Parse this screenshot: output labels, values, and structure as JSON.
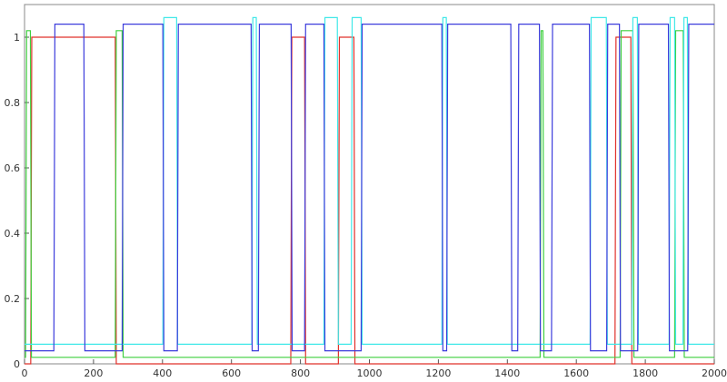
{
  "chart_data": {
    "type": "line",
    "xlim": [
      0,
      2000
    ],
    "xticks": [
      0,
      200,
      400,
      600,
      800,
      1000,
      1200,
      1400,
      1600,
      1800,
      2000
    ],
    "ylim": [
      0,
      1.1
    ],
    "yticks": [
      0,
      0.2,
      0.4,
      0.6,
      0.8,
      1
    ],
    "series": [
      {
        "color": "#e0302a",
        "x": [
          0,
          18,
          21,
          263,
          266,
          772,
          775,
          812,
          815,
          910,
          913,
          955,
          958,
          1712,
          1715,
          1758,
          1761,
          2000
        ],
        "values": [
          0,
          0,
          1,
          1,
          0,
          0,
          1,
          1,
          0,
          0,
          1,
          1,
          0,
          0,
          1,
          1,
          0,
          0
        ]
      },
      {
        "color": "#3fcf3f",
        "x": [
          0,
          3,
          6,
          17,
          20,
          263,
          266,
          283,
          286,
          1495,
          1498,
          1503,
          1506,
          1727,
          1730,
          1764,
          1767,
          1885,
          1888,
          1910,
          1913,
          2000
        ],
        "values": [
          0.02,
          0.02,
          1.02,
          1.02,
          0.02,
          0.02,
          1.02,
          1.02,
          0.02,
          0.02,
          1.02,
          1.02,
          0.02,
          0.02,
          1.02,
          1.02,
          0.02,
          0.02,
          1.02,
          1.02,
          0.02,
          0.02
        ]
      },
      {
        "color": "#40e8e8",
        "x": [
          0,
          401,
          404,
          441,
          444,
          659,
          662,
          672,
          675,
          868,
          871,
          907,
          910,
          947,
          950,
          976,
          979,
          1210,
          1213,
          1223,
          1226,
          1640,
          1643,
          1687,
          1690,
          1761,
          1764,
          1777,
          1780,
          1869,
          1872,
          1885,
          1888,
          1909,
          1912,
          1922,
          1925,
          2000
        ],
        "values": [
          0.06,
          0.06,
          1.06,
          1.06,
          0.06,
          0.06,
          1.06,
          1.06,
          0.06,
          0.06,
          1.06,
          1.06,
          0.06,
          0.06,
          1.06,
          1.06,
          0.06,
          0.06,
          1.06,
          1.06,
          0.06,
          0.06,
          1.06,
          1.06,
          0.06,
          0.06,
          1.06,
          1.06,
          0.06,
          0.06,
          1.06,
          1.06,
          0.06,
          0.06,
          1.06,
          1.06,
          0.06,
          0.06
        ]
      },
      {
        "color": "#3c3cdc",
        "x": [
          0,
          85,
          88,
          172,
          175,
          283,
          286,
          401,
          404,
          443,
          446,
          657,
          660,
          678,
          681,
          773,
          776,
          812,
          815,
          868,
          871,
          976,
          979,
          1210,
          1213,
          1224,
          1227,
          1410,
          1413,
          1430,
          1433,
          1493,
          1496,
          1528,
          1531,
          1638,
          1641,
          1688,
          1691,
          1725,
          1728,
          1778,
          1781,
          1867,
          1870,
          1923,
          1926,
          2000
        ],
        "values": [
          0.04,
          0.04,
          1.04,
          1.04,
          0.04,
          0.04,
          1.04,
          1.04,
          0.04,
          0.04,
          1.04,
          1.04,
          0.04,
          0.04,
          1.04,
          1.04,
          0.04,
          0.04,
          1.04,
          1.04,
          0.04,
          0.04,
          1.04,
          1.04,
          0.04,
          0.04,
          1.04,
          1.04,
          0.04,
          0.04,
          1.04,
          1.04,
          0.04,
          0.04,
          1.04,
          1.04,
          0.04,
          0.04,
          1.04,
          1.04,
          0.04,
          0.04,
          1.04,
          1.04,
          0.04,
          0.04,
          1.04,
          1.04
        ]
      }
    ]
  }
}
